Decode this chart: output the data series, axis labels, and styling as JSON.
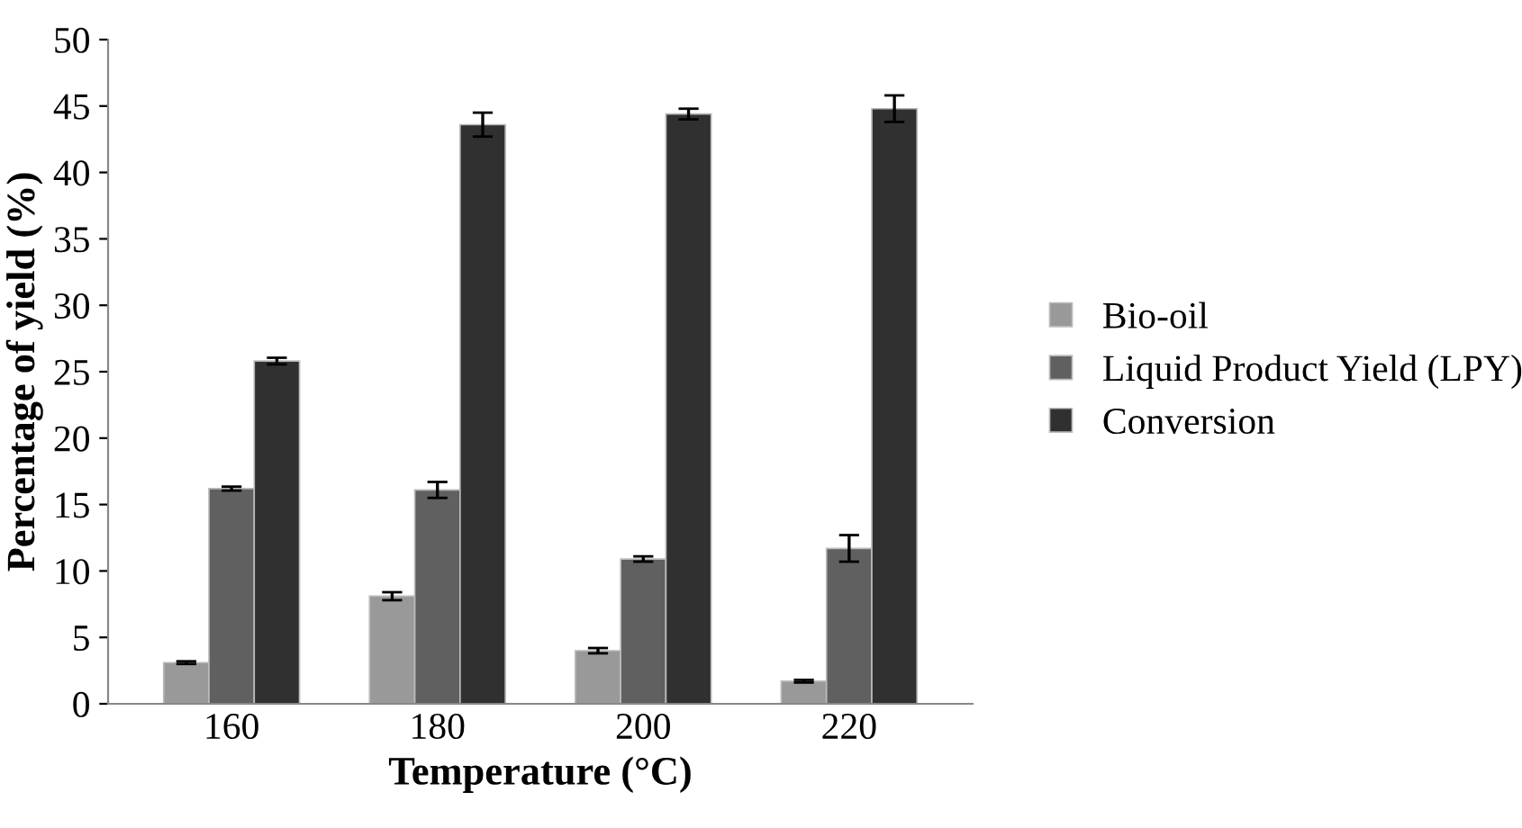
{
  "chart_data": {
    "type": "bar",
    "xlabel": "Temperature (°C)",
    "ylabel": "Percentage of yield (%)",
    "categories": [
      "160",
      "180",
      "200",
      "220"
    ],
    "series": [
      {
        "name": "Bio-oil",
        "color": "#999999",
        "values": [
          3.1,
          8.1,
          4.0,
          1.7
        ],
        "errors": [
          0.1,
          0.3,
          0.2,
          0.1
        ]
      },
      {
        "name": "Liquid Product Yield (LPY)",
        "color": "#606060",
        "values": [
          16.2,
          16.1,
          10.9,
          11.7
        ],
        "errors": [
          0.15,
          0.6,
          0.2,
          1.0
        ]
      },
      {
        "name": "Conversion",
        "color": "#303030",
        "values": [
          25.8,
          43.6,
          44.4,
          44.8
        ],
        "errors": [
          0.25,
          0.9,
          0.4,
          1.0
        ]
      }
    ],
    "ylim": [
      0,
      50
    ],
    "yticks": [
      0,
      5,
      10,
      15,
      20,
      25,
      30,
      35,
      40,
      45,
      50
    ],
    "grid": false,
    "legend": "right"
  }
}
